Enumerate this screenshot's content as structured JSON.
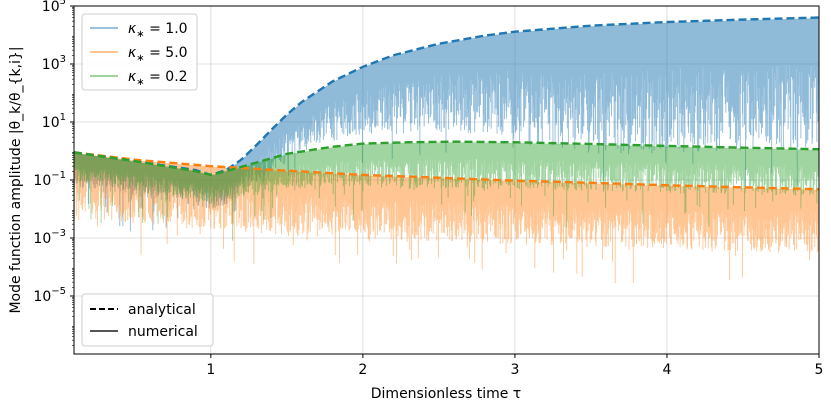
{
  "chart_data": {
    "type": "line",
    "xlabel": "Dimensionless time τ",
    "ylabel": "Mode function amplitude |θ_k/θ_{k,i}|",
    "xlim": [
      0.1,
      5.0
    ],
    "ylim_log10": [
      -7,
      5
    ],
    "yscale": "log",
    "grid": true,
    "x_ticks": [
      1,
      2,
      3,
      4,
      5
    ],
    "x_tick_labels": [
      "1",
      "2",
      "3",
      "4",
      "5"
    ],
    "y_ticks_log10": [
      -5,
      -3,
      -1,
      1,
      3,
      5
    ],
    "y_tick_base": "10",
    "y_tick_exponents": [
      "−5",
      "−3",
      "−1",
      "1",
      "3",
      "5"
    ],
    "legend_series_placement": "top-left",
    "legend_style_placement": "bottom-left",
    "series": [
      {
        "name": "κ∗ = 1.0",
        "legend_symbol": "κ",
        "legend_sub": "∗",
        "legend_value": " = 1.0",
        "color": "#1f77b4",
        "analytical_x": [
          0.1,
          0.5,
          0.9,
          1.0,
          1.1,
          1.2,
          1.3,
          1.4,
          1.5,
          1.6,
          1.8,
          2.0,
          2.2,
          2.5,
          2.8,
          3.0,
          3.5,
          4.0,
          4.5,
          5.0
        ],
        "analytical_y": [
          0.9,
          0.45,
          0.22,
          0.15,
          0.22,
          0.5,
          1.6,
          5.5,
          18,
          50,
          250,
          800,
          2000,
          5000,
          9500,
          13000,
          21000,
          28000,
          34000,
          40000
        ]
      },
      {
        "name": "κ∗ = 5.0",
        "legend_symbol": "κ",
        "legend_sub": "∗",
        "legend_value": " = 5.0",
        "color": "#ff7f0e",
        "analytical_x": [
          0.1,
          0.5,
          1.0,
          1.5,
          2.0,
          2.5,
          3.0,
          3.5,
          4.0,
          4.5,
          5.0
        ],
        "analytical_y": [
          0.9,
          0.5,
          0.3,
          0.21,
          0.15,
          0.12,
          0.095,
          0.08,
          0.066,
          0.056,
          0.048
        ]
      },
      {
        "name": "κ∗ = 0.2",
        "legend_symbol": "κ",
        "legend_sub": "∗",
        "legend_value": " = 0.2",
        "color": "#2ca02c",
        "analytical_x": [
          0.1,
          0.5,
          0.9,
          1.0,
          1.1,
          1.3,
          1.5,
          1.8,
          2.0,
          2.3,
          2.6,
          3.0,
          3.5,
          4.0,
          4.5,
          5.0
        ],
        "analytical_y": [
          0.9,
          0.45,
          0.2,
          0.15,
          0.2,
          0.4,
          0.8,
          1.4,
          1.8,
          2.0,
          2.1,
          2.0,
          1.75,
          1.5,
          1.3,
          1.15
        ]
      }
    ],
    "style_legend": [
      {
        "label": "analytical",
        "style": "dashed"
      },
      {
        "label": "numerical",
        "style": "solid"
      }
    ]
  }
}
